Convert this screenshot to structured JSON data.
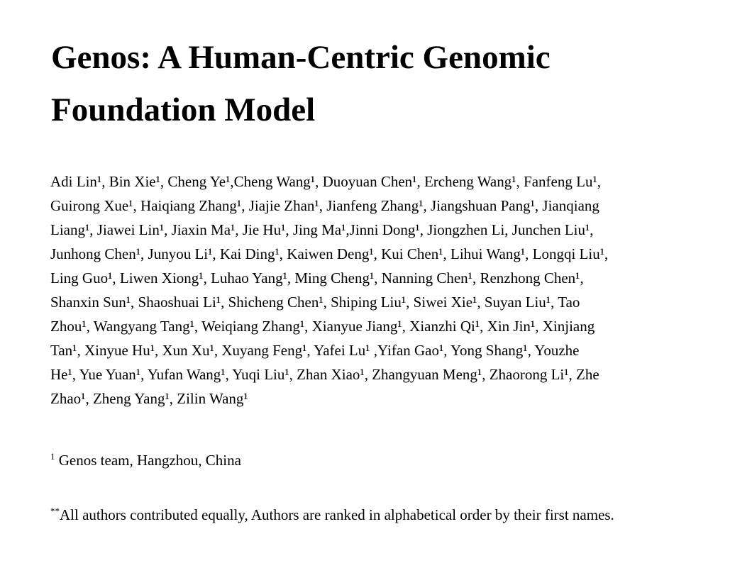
{
  "title": {
    "lines": [
      "Genos: A Human-Centric Genomic",
      "Foundation Model"
    ]
  },
  "authors": {
    "lines": [
      "Adi Lin¹, Bin Xie¹, Cheng Ye¹,Cheng Wang¹, Duoyuan Chen¹, Ercheng Wang¹, Fanfeng Lu¹,",
      "Guirong Xue¹, Haiqiang Zhang¹, Jiajie Zhan¹, Jianfeng Zhang¹, Jiangshuan Pang¹, Jianqiang",
      "Liang¹, Jiawei Lin¹, Jiaxin Ma¹, Jie Hu¹, Jing Ma¹,Jinni Dong¹, Jiongzhen Li, Junchen Liu¹,",
      "Junhong Chen¹, Junyou Li¹, Kai Ding¹, Kaiwen Deng¹, Kui Chen¹, Lihui Wang¹, Longqi Liu¹,",
      "Ling Guo¹, Liwen Xiong¹, Luhao Yang¹, Ming Cheng¹, Nanning Chen¹, Renzhong Chen¹,",
      "Shanxin Sun¹, Shaoshuai Li¹, Shicheng Chen¹, Shiping Liu¹, Siwei Xie¹, Suyan Liu¹, Tao",
      "Zhou¹, Wangyang Tang¹, Weiqiang Zhang¹, Xianyue Jiang¹, Xianzhi Qi¹, Xin Jin¹, Xinjiang",
      "Tan¹, Xinyue Hu¹, Xun Xu¹, Xuyang Feng¹, Yafei Lu¹ ,Yifan Gao¹, Yong Shang¹, Youzhe",
      "He¹, Yue Yuan¹, Yufan Wang¹, Yuqi Liu¹, Zhan Xiao¹, Zhangyuan Meng¹, Zhaorong Li¹, Zhe",
      "Zhao¹, Zheng Yang¹, Zilin Wang¹"
    ]
  },
  "affiliation": {
    "marker": "1",
    "text": " Genos team, Hangzhou, China"
  },
  "note": {
    "marker": "**",
    "text": "All authors contributed equally, Authors are ranked in alphabetical order by their first names."
  }
}
